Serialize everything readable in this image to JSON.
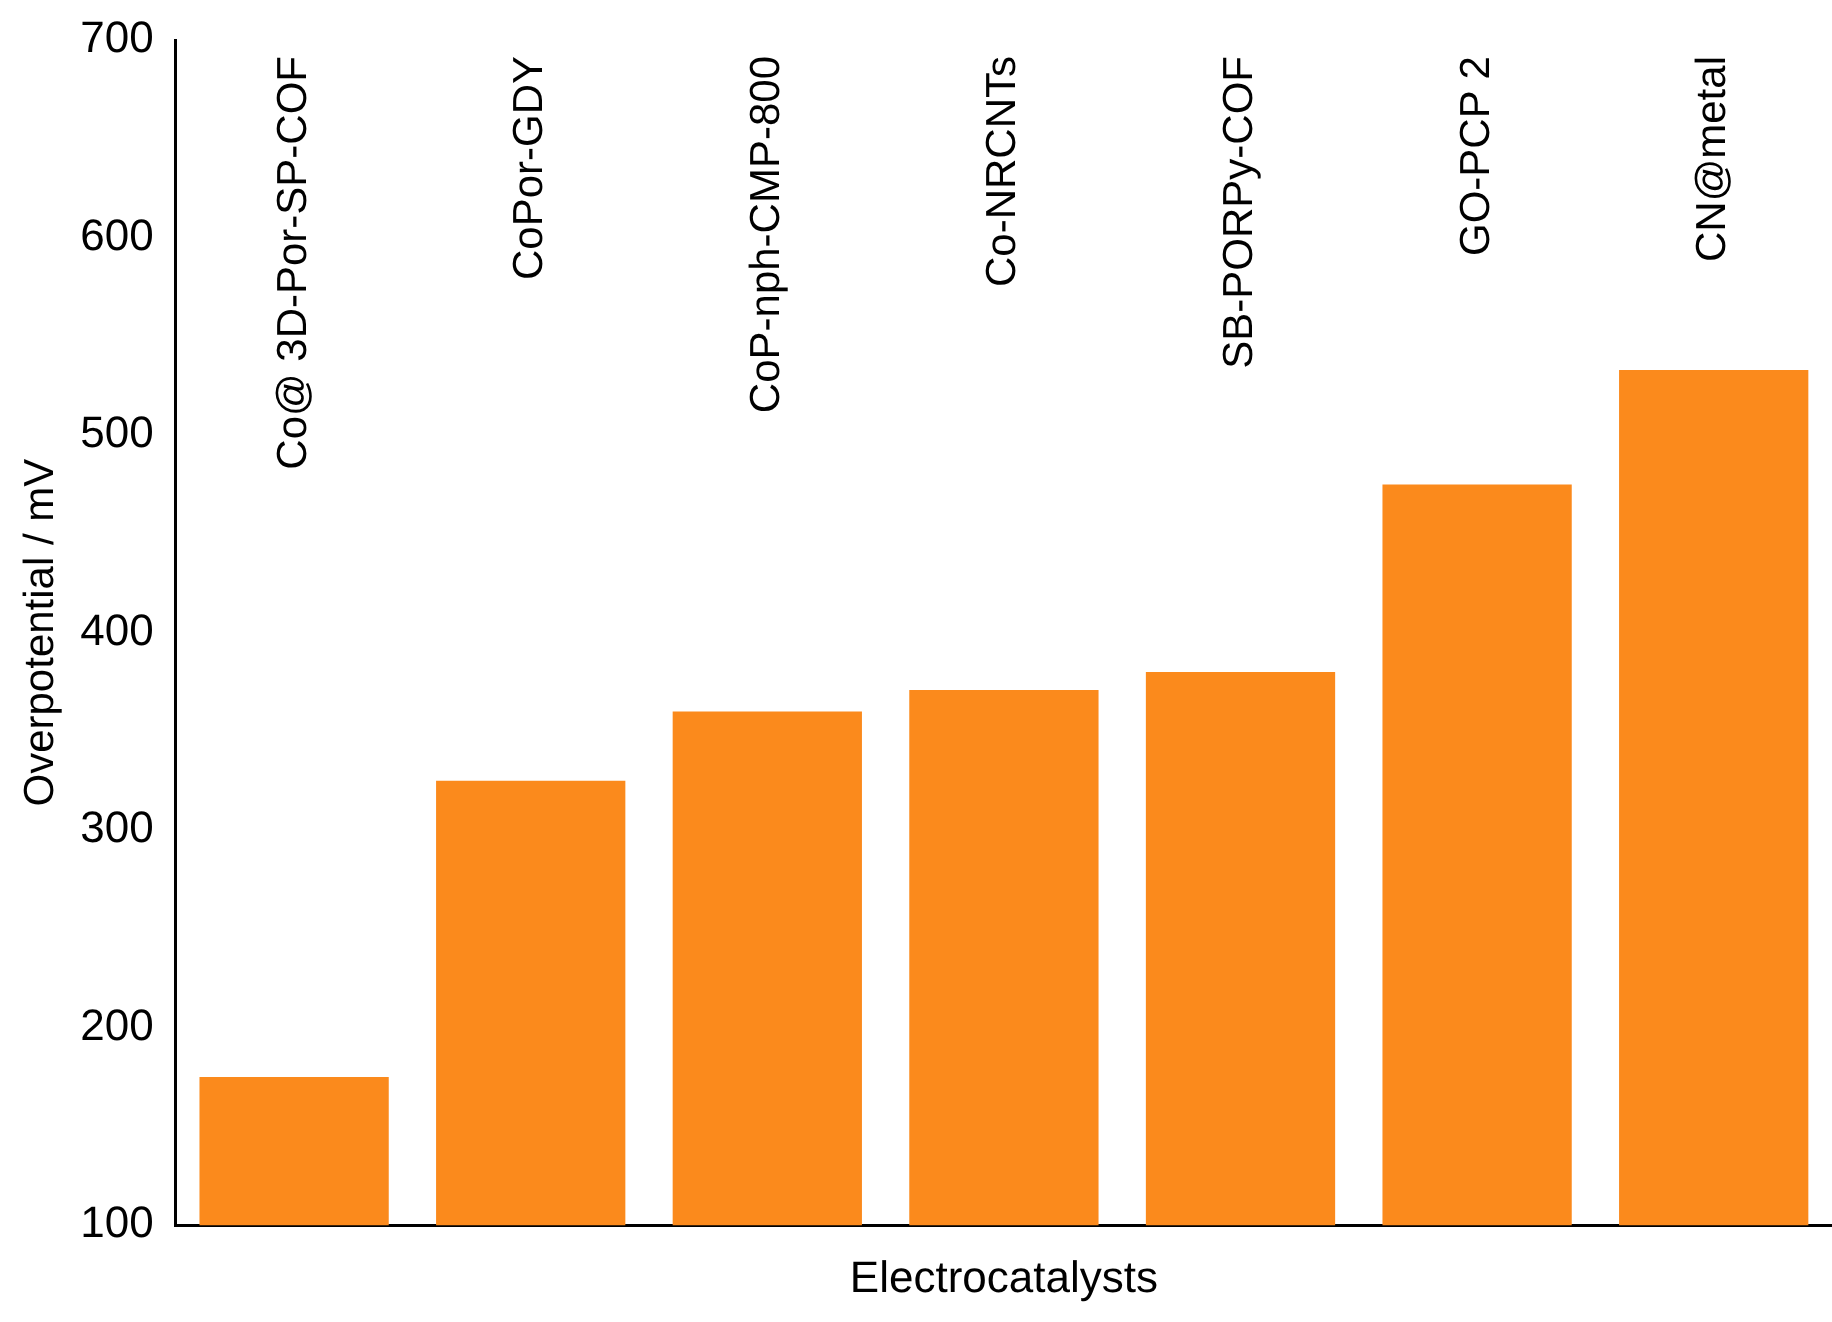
{
  "chart_data": {
    "type": "bar",
    "xlabel": "Electrocatalysts",
    "ylabel": "Overpotential / mV",
    "categories": [
      "Co@ 3D-Por-SP-COF",
      "CoPor-GDY",
      "CoP-nph-CMP-800",
      "Co-NRCNTs",
      "SB-PORPy-COF",
      "GO-PCP 2",
      "CN@metal"
    ],
    "values": [
      175,
      325,
      360,
      371,
      380,
      475,
      533
    ],
    "color": "#fb8a1c",
    "ylim": [
      100,
      700
    ],
    "yticks": [
      100,
      200,
      300,
      400,
      500,
      600,
      700
    ],
    "grid": false,
    "legend": false
  }
}
